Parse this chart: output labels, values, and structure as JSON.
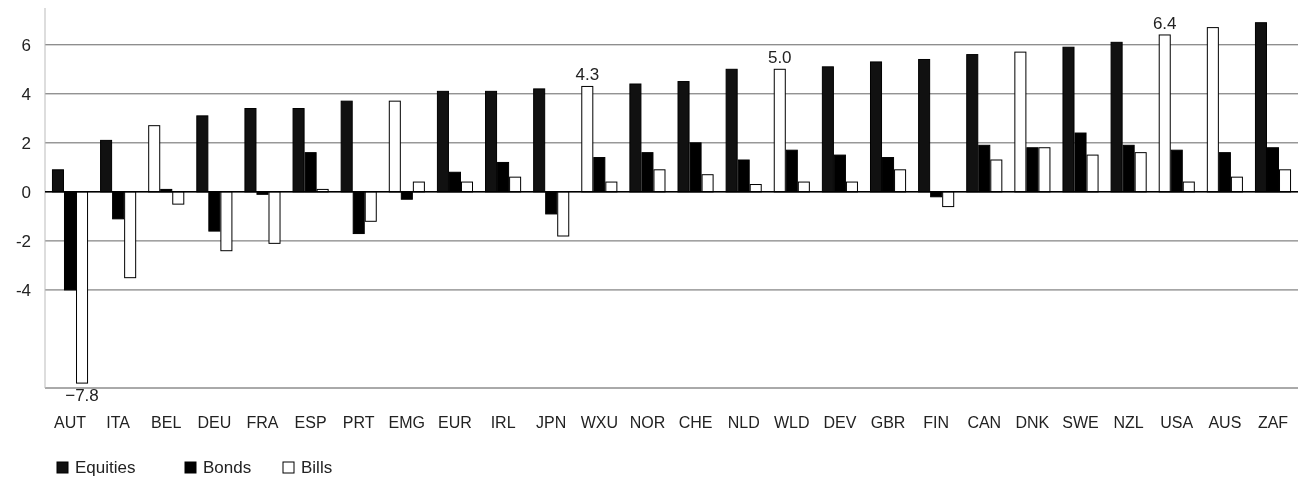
{
  "chart_data": {
    "type": "bar",
    "categories": [
      "AUT",
      "ITA",
      "BEL",
      "DEU",
      "FRA",
      "ESP",
      "PRT",
      "EMG",
      "EUR",
      "IRL",
      "JPN",
      "WXU",
      "NOR",
      "CHE",
      "NLD",
      "WLD",
      "DEV",
      "GBR",
      "FIN",
      "CAN",
      "DNK",
      "SWE",
      "NZL",
      "USA",
      "AUS",
      "ZAF"
    ],
    "series": [
      {
        "name": "Equities",
        "color": "#111111",
        "colors": [
          "#111111",
          "#111111",
          "#ffffff",
          "#111111",
          "#111111",
          "#111111",
          "#111111",
          "#ffffff",
          "#111111",
          "#111111",
          "#111111",
          "#ffffff",
          "#111111",
          "#111111",
          "#111111",
          "#ffffff",
          "#111111",
          "#111111",
          "#111111",
          "#111111",
          "#ffffff",
          "#111111",
          "#111111",
          "#ffffff",
          "#ffffff",
          "#111111"
        ],
        "values": [
          0.9,
          2.1,
          2.7,
          3.1,
          3.4,
          3.4,
          3.7,
          3.7,
          4.1,
          4.1,
          4.2,
          4.3,
          4.4,
          4.5,
          5.0,
          5.0,
          5.1,
          5.3,
          5.4,
          5.6,
          5.7,
          5.9,
          6.1,
          6.4,
          6.7,
          6.9
        ],
        "value_labels": [
          null,
          null,
          null,
          null,
          null,
          null,
          null,
          null,
          null,
          null,
          null,
          "4.3",
          null,
          null,
          null,
          "5.0",
          null,
          null,
          null,
          null,
          null,
          null,
          null,
          "6.4",
          null,
          null
        ]
      },
      {
        "name": "Bonds",
        "color": "#000000",
        "values": [
          -4.0,
          -1.1,
          0.1,
          -1.6,
          -0.1,
          1.6,
          -1.7,
          -0.3,
          0.8,
          1.2,
          -0.9,
          1.4,
          1.6,
          2.0,
          1.3,
          1.7,
          1.5,
          1.4,
          -0.2,
          1.9,
          1.8,
          2.4,
          1.9,
          1.7,
          1.6,
          1.8
        ]
      },
      {
        "name": "Bills",
        "color": "#ffffff",
        "values": [
          -7.8,
          -3.5,
          -0.5,
          -2.4,
          -2.1,
          0.1,
          -1.2,
          0.4,
          0.4,
          0.6,
          -1.8,
          0.4,
          0.9,
          0.7,
          0.3,
          0.4,
          0.4,
          0.9,
          -0.6,
          1.3,
          1.8,
          1.5,
          1.6,
          0.4,
          0.6,
          0.9
        ],
        "value_labels": [
          "−7.8",
          null,
          null,
          null,
          null,
          null,
          null,
          null,
          null,
          null,
          null,
          null,
          null,
          null,
          null,
          null,
          null,
          null,
          null,
          null,
          null,
          null,
          null,
          null,
          null,
          null
        ]
      }
    ],
    "ylim": [
      -8,
      7.5
    ],
    "yticks": [
      -4,
      -2,
      0,
      2,
      4,
      6
    ],
    "grid": "y",
    "legend": "bottom left"
  }
}
